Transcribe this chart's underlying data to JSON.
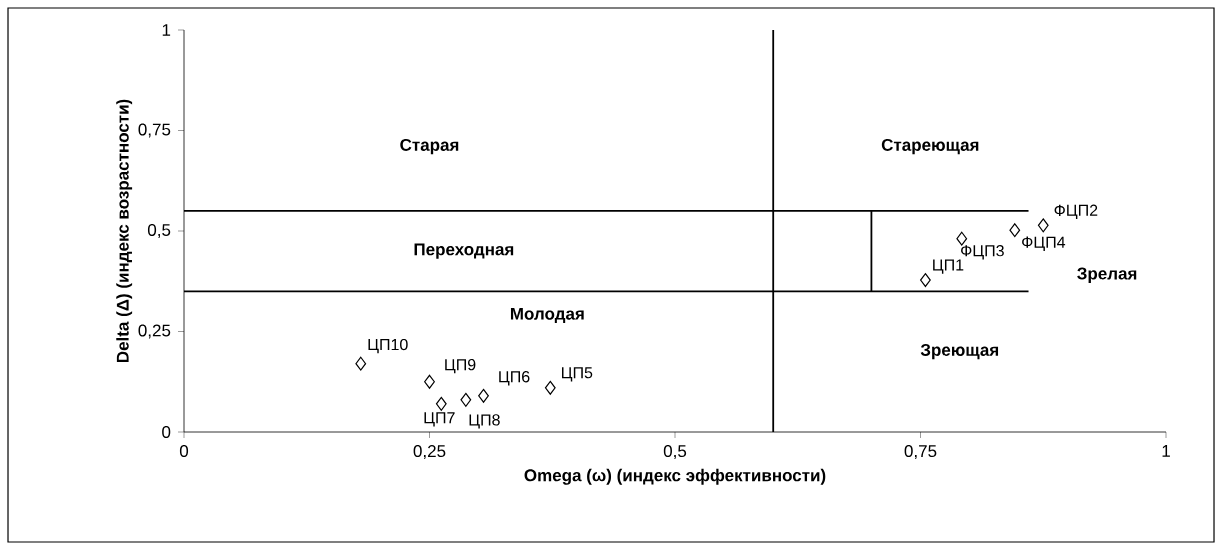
{
  "chart_data": {
    "type": "scatter",
    "xlabel": "Omega (ω) (индекс эффективности)",
    "ylabel": "Delta (Δ) (индекс возрастности)",
    "xlim": [
      0,
      1
    ],
    "ylim": [
      0,
      1
    ],
    "xticks": [
      0,
      {
        "value": 0.25,
        "label": "0,25"
      },
      {
        "value": 0.5,
        "label": "0,5"
      },
      {
        "value": 0.75,
        "label": "0,75"
      },
      1
    ],
    "yticks": [
      0,
      {
        "value": 0.25,
        "label": "0,25"
      },
      {
        "value": 0.5,
        "label": "0,5"
      },
      {
        "value": 0.75,
        "label": "0,75"
      },
      1
    ],
    "marker": "diamond",
    "grid": false,
    "series": [
      {
        "color": "#000000",
        "x": [
          0.755,
          0.875,
          0.792,
          0.846,
          0.373,
          0.305,
          0.262,
          0.287,
          0.25,
          0.18
        ],
        "values": [
          0.378,
          0.514,
          0.481,
          0.502,
          0.11,
          0.09,
          0.07,
          0.08,
          0.125,
          0.17
        ],
        "value_labels": [
          "ЦП1",
          "ФЦП2",
          "ФЦП3",
          "ФЦП4",
          "ЦП5",
          "ЦП6",
          "ЦП7",
          "ЦП8",
          "ЦП9",
          "ЦП10"
        ]
      },
      {
        "type": "line",
        "marker": "none",
        "color": "#000000",
        "x": [
          0.6,
          0.6
        ],
        "values": [
          0,
          1
        ]
      },
      {
        "type": "line",
        "marker": "none",
        "color": "#000000",
        "x": [
          0,
          0.86
        ],
        "values": [
          0.55,
          0.55
        ]
      },
      {
        "type": "line",
        "marker": "none",
        "color": "#000000",
        "x": [
          0,
          0.86
        ],
        "values": [
          0.35,
          0.35
        ]
      },
      {
        "type": "line",
        "marker": "none",
        "color": "#000000",
        "x": [
          0.7,
          0.7
        ],
        "values": [
          0.35,
          0.55
        ]
      }
    ],
    "annotations": [
      "Старая",
      "Стареющая",
      "Переходная",
      "Молодая",
      "Зрелая",
      "Зреющая"
    ]
  }
}
